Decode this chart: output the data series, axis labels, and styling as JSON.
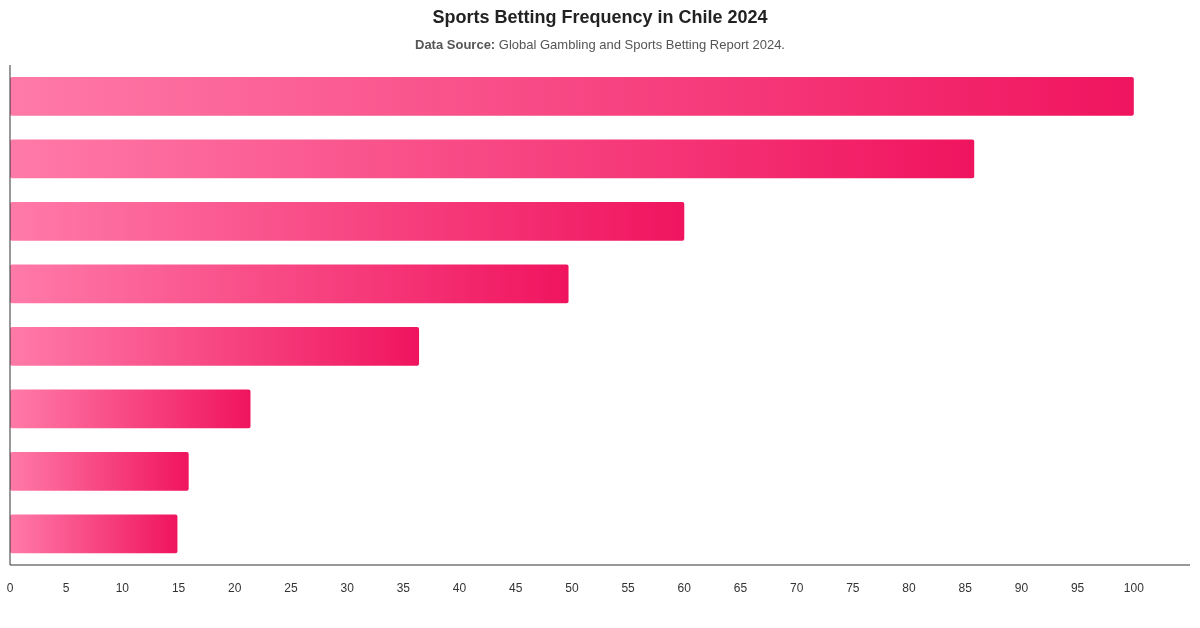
{
  "chart_data": {
    "type": "bar",
    "orientation": "horizontal",
    "title": "Sports Betting Frequency in Chile 2024",
    "subtitle": "Data Source: Global Gambling and Sports Betting Report 2024.",
    "categories": [
      null,
      null,
      null,
      null,
      null,
      null,
      null,
      null
    ],
    "values": [
      100,
      85.8,
      60,
      49.7,
      36.4,
      21.4,
      15.9,
      14.9
    ],
    "color": "#f0145f",
    "xlim": [
      0,
      105
    ],
    "xticks": [
      0,
      5,
      10,
      15,
      20,
      25,
      30,
      35,
      40,
      45,
      50,
      55,
      60,
      65,
      70,
      75,
      80,
      85,
      90,
      95,
      100
    ],
    "grid": false
  }
}
